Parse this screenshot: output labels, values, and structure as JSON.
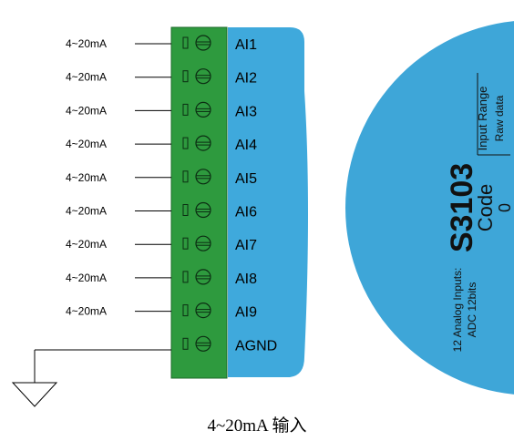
{
  "inputs": [
    {
      "label": "4~20mA",
      "channel": "AI1"
    },
    {
      "label": "4~20mA",
      "channel": "AI2"
    },
    {
      "label": "4~20mA",
      "channel": "AI3"
    },
    {
      "label": "4~20mA",
      "channel": "AI4"
    },
    {
      "label": "4~20mA",
      "channel": "AI5"
    },
    {
      "label": "4~20mA",
      "channel": "AI6"
    },
    {
      "label": "4~20mA",
      "channel": "AI7"
    },
    {
      "label": "4~20mA",
      "channel": "AI8"
    },
    {
      "label": "4~20mA",
      "channel": "AI9"
    }
  ],
  "ground_terminal": "AGND",
  "module": {
    "model": "S3103",
    "description_line1": "12 Analog Inputs:",
    "description_line2": "ADC 12bits",
    "table_header_code": "Code",
    "table_header_range": "Input Range",
    "table_sub_header": "Raw data",
    "table_code_value": "0"
  },
  "caption": "4~20mA 输入",
  "colors": {
    "terminal_block": "#2e9a3e",
    "label_strip": "#3fa9dc",
    "module_body": "#3ea6d8"
  }
}
